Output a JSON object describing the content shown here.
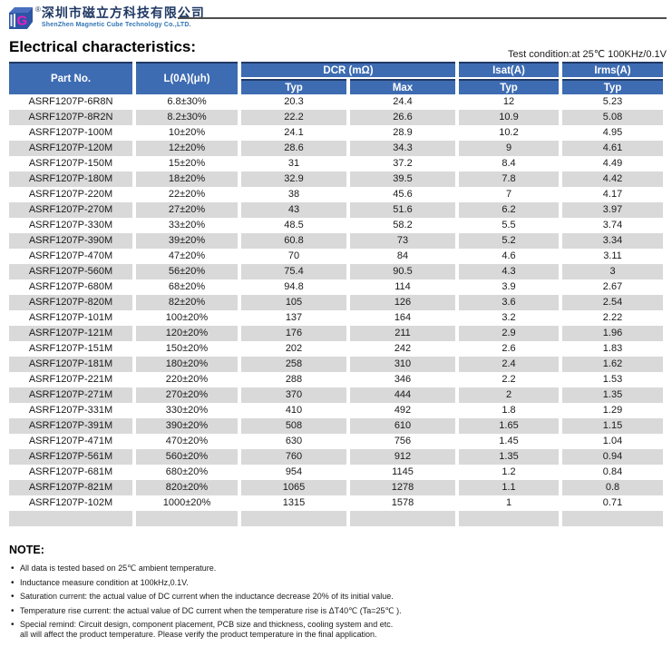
{
  "header": {
    "registered_mark": "®",
    "company_cn": "深圳市磁立方科技有限公司",
    "company_en": "ShenZhen Magnetic Cube Technology Co.,LTD.",
    "logo_letter": "G"
  },
  "page": {
    "title": "Electrical characteristics:",
    "test_condition": "Test condition:at 25℃ 100KHz/0.1V"
  },
  "table": {
    "headers": {
      "part_no": "Part No.",
      "inductance": "L(0A)(μh)",
      "dcr": "DCR (mΩ)",
      "isat": "Isat(A)",
      "irms": "Irms(A)",
      "sub": [
        "Typ",
        "Max",
        "Typ",
        "Typ"
      ]
    },
    "rows": [
      [
        "ASRF1207P-6R8N",
        "6.8±30%",
        "20.3",
        "24.4",
        "12",
        "5.23"
      ],
      [
        "ASRF1207P-8R2N",
        "8.2±30%",
        "22.2",
        "26.6",
        "10.9",
        "5.08"
      ],
      [
        "ASRF1207P-100M",
        "10±20%",
        "24.1",
        "28.9",
        "10.2",
        "4.95"
      ],
      [
        "ASRF1207P-120M",
        "12±20%",
        "28.6",
        "34.3",
        "9",
        "4.61"
      ],
      [
        "ASRF1207P-150M",
        "15±20%",
        "31",
        "37.2",
        "8.4",
        "4.49"
      ],
      [
        "ASRF1207P-180M",
        "18±20%",
        "32.9",
        "39.5",
        "7.8",
        "4.42"
      ],
      [
        "ASRF1207P-220M",
        "22±20%",
        "38",
        "45.6",
        "7",
        "4.17"
      ],
      [
        "ASRF1207P-270M",
        "27±20%",
        "43",
        "51.6",
        "6.2",
        "3.97"
      ],
      [
        "ASRF1207P-330M",
        "33±20%",
        "48.5",
        "58.2",
        "5.5",
        "3.74"
      ],
      [
        "ASRF1207P-390M",
        "39±20%",
        "60.8",
        "73",
        "5.2",
        "3.34"
      ],
      [
        "ASRF1207P-470M",
        "47±20%",
        "70",
        "84",
        "4.6",
        "3.11"
      ],
      [
        "ASRF1207P-560M",
        "56±20%",
        "75.4",
        "90.5",
        "4.3",
        "3"
      ],
      [
        "ASRF1207P-680M",
        "68±20%",
        "94.8",
        "114",
        "3.9",
        "2.67"
      ],
      [
        "ASRF1207P-820M",
        "82±20%",
        "105",
        "126",
        "3.6",
        "2.54"
      ],
      [
        "ASRF1207P-101M",
        "100±20%",
        "137",
        "164",
        "3.2",
        "2.22"
      ],
      [
        "ASRF1207P-121M",
        "120±20%",
        "176",
        "211",
        "2.9",
        "1.96"
      ],
      [
        "ASRF1207P-151M",
        "150±20%",
        "202",
        "242",
        "2.6",
        "1.83"
      ],
      [
        "ASRF1207P-181M",
        "180±20%",
        "258",
        "310",
        "2.4",
        "1.62"
      ],
      [
        "ASRF1207P-221M",
        "220±20%",
        "288",
        "346",
        "2.2",
        "1.53"
      ],
      [
        "ASRF1207P-271M",
        "270±20%",
        "370",
        "444",
        "2",
        "1.35"
      ],
      [
        "ASRF1207P-331M",
        "330±20%",
        "410",
        "492",
        "1.8",
        "1.29"
      ],
      [
        "ASRF1207P-391M",
        "390±20%",
        "508",
        "610",
        "1.65",
        "1.15"
      ],
      [
        "ASRF1207P-471M",
        "470±20%",
        "630",
        "756",
        "1.45",
        "1.04"
      ],
      [
        "ASRF1207P-561M",
        "560±20%",
        "760",
        "912",
        "1.35",
        "0.94"
      ],
      [
        "ASRF1207P-681M",
        "680±20%",
        "954",
        "1145",
        "1.2",
        "0.84"
      ],
      [
        "ASRF1207P-821M",
        "820±20%",
        "1065",
        "1278",
        "1.1",
        "0.8"
      ],
      [
        "ASRF1207P-102M",
        "1000±20%",
        "1315",
        "1578",
        "1",
        "0.71"
      ],
      [
        "",
        "",
        "",
        "",
        "",
        ""
      ]
    ]
  },
  "note": {
    "heading": "NOTE:",
    "items": [
      "All data is tested based on 25℃ ambient temperature.",
      "Inductance measure condition at 100kHz,0.1V.",
      "Saturation current: the actual value of DC current when the inductance decrease 20% of its initial value.",
      "Temperature rise current: the actual value of DC current when the temperature rise is ΔT40℃ (Ta=25℃ ).",
      "Special remind: Circuit design, component placement, PCB size and thickness, cooling system and etc.\nall will affect the product temperature. Please verify the product temperature in the final application."
    ]
  },
  "colors": {
    "table_header_blue": "#3E6CB2",
    "table_header_border_navy": "#1F3864",
    "row_alt_gray": "#D9D9D9",
    "brand_navy": "#1F3864",
    "brand_en_blue": "#2E74B5",
    "logo_blue": "#2D55A5",
    "logo_magenta": "#ED1BC5"
  }
}
